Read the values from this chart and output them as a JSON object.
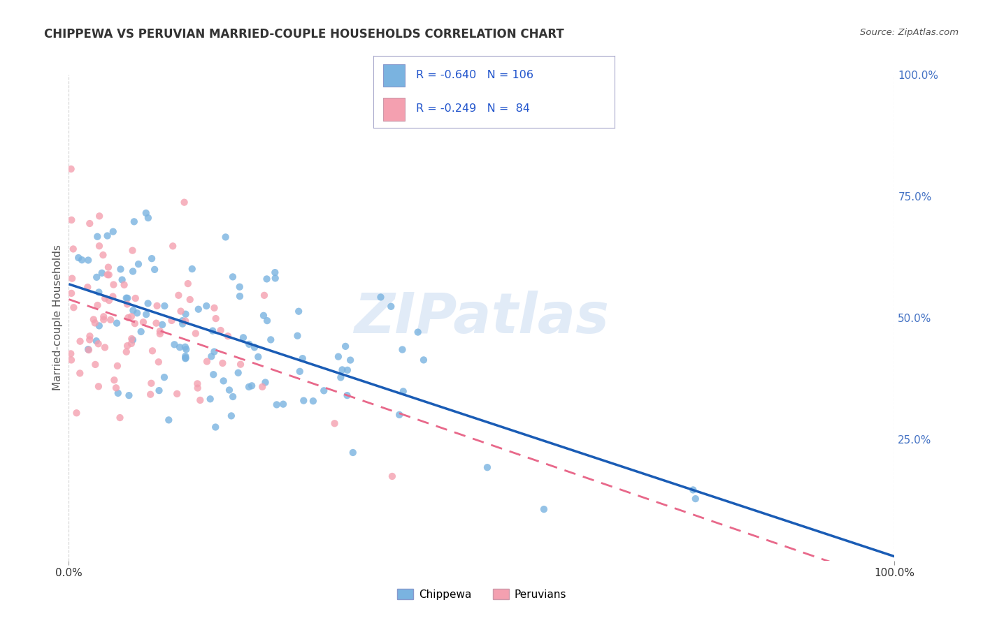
{
  "title": "CHIPPEWA VS PERUVIAN MARRIED-COUPLE HOUSEHOLDS CORRELATION CHART",
  "source": "Source: ZipAtlas.com",
  "ylabel": "Married-couple Households",
  "xlim": [
    0.0,
    1.0
  ],
  "ylim": [
    0.0,
    1.0
  ],
  "xtick_labels": [
    "0.0%",
    "100.0%"
  ],
  "ytick_labels_right": [
    "100.0%",
    "75.0%",
    "50.0%",
    "25.0%"
  ],
  "ytick_positions_right": [
    1.0,
    0.75,
    0.5,
    0.25
  ],
  "watermark": "ZIPatlas",
  "chippewa_color": "#7ab3e0",
  "peruvian_color": "#f4a0b0",
  "chippewa_line_color": "#1a5cb5",
  "peruvian_line_color": "#e8688a",
  "chippewa_R": -0.64,
  "chippewa_N": 106,
  "peruvian_R": -0.249,
  "peruvian_N": 84,
  "background_color": "#ffffff",
  "grid_color": "#cccccc",
  "title_color": "#333333",
  "axis_label_color": "#555555",
  "right_tick_color": "#4472c4",
  "legend_text_color": "#2255cc",
  "chippewa_seed": 42,
  "peruvian_seed": 7
}
